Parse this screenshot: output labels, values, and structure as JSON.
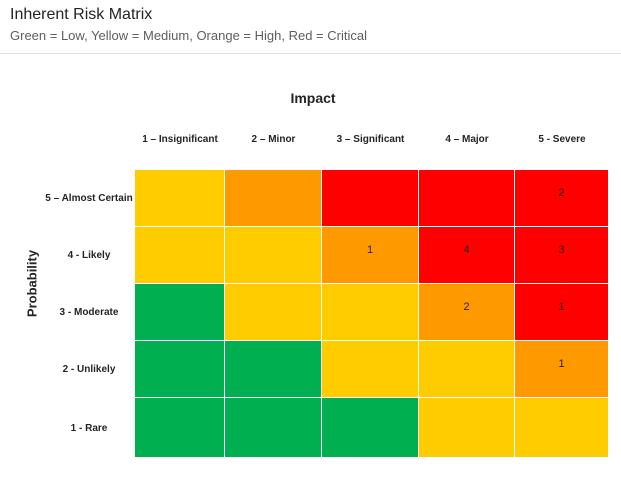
{
  "visual": {
    "title": "Inherent Risk Matrix",
    "subtitle": "Green = Low, Yellow = Medium, Orange = High, Red = Critical"
  },
  "matrix": {
    "x_axis_title": "Impact",
    "y_axis_title": "Probability",
    "columns": [
      "1 – Insignificant",
      "2 – Minor",
      "3 – Significant",
      "4 – Major",
      "5 - Severe"
    ],
    "rows": [
      "5 – Almost Certain",
      "4 - Likely",
      "3 - Moderate",
      "2 - Unlikely",
      "1 - Rare"
    ],
    "colors": {
      "Low": "#00b050",
      "Medium": "#ffcc00",
      "High": "#ff9900",
      "Critical": "#ff0000"
    },
    "cells": [
      [
        {
          "level": "Medium",
          "count": ""
        },
        {
          "level": "High",
          "count": ""
        },
        {
          "level": "Critical",
          "count": ""
        },
        {
          "level": "Critical",
          "count": ""
        },
        {
          "level": "Critical",
          "count": "2"
        }
      ],
      [
        {
          "level": "Medium",
          "count": ""
        },
        {
          "level": "Medium",
          "count": ""
        },
        {
          "level": "High",
          "count": "1"
        },
        {
          "level": "Critical",
          "count": "4"
        },
        {
          "level": "Critical",
          "count": "3"
        }
      ],
      [
        {
          "level": "Low",
          "count": ""
        },
        {
          "level": "Medium",
          "count": ""
        },
        {
          "level": "Medium",
          "count": ""
        },
        {
          "level": "High",
          "count": "2"
        },
        {
          "level": "Critical",
          "count": "1"
        }
      ],
      [
        {
          "level": "Low",
          "count": ""
        },
        {
          "level": "Low",
          "count": ""
        },
        {
          "level": "Medium",
          "count": ""
        },
        {
          "level": "Medium",
          "count": ""
        },
        {
          "level": "High",
          "count": "1"
        }
      ],
      [
        {
          "level": "Low",
          "count": ""
        },
        {
          "level": "Low",
          "count": ""
        },
        {
          "level": "Low",
          "count": ""
        },
        {
          "level": "Medium",
          "count": ""
        },
        {
          "level": "Medium",
          "count": ""
        }
      ]
    ]
  }
}
